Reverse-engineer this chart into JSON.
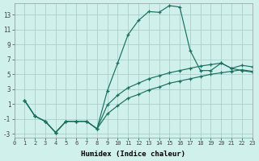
{
  "xlabel": "Humidex (Indice chaleur)",
  "bg_color": "#cff0eb",
  "line_color": "#1a7060",
  "grid_color": "#aacfca",
  "xlim": [
    0,
    23
  ],
  "ylim": [
    -3.5,
    14.5
  ],
  "xticks": [
    0,
    1,
    2,
    3,
    4,
    5,
    6,
    7,
    8,
    9,
    10,
    11,
    12,
    13,
    14,
    15,
    16,
    17,
    18,
    19,
    20,
    21,
    22,
    23
  ],
  "yticks": [
    -3,
    -1,
    1,
    3,
    5,
    7,
    9,
    11,
    13
  ],
  "curve1_x": [
    1,
    2,
    3,
    4,
    5,
    6,
    7,
    8,
    9,
    10,
    11,
    12,
    13,
    14,
    15,
    16,
    17,
    18,
    19,
    20,
    21,
    22,
    23
  ],
  "curve1_y": [
    1.5,
    -0.6,
    -1.3,
    -2.8,
    -1.3,
    -1.3,
    -1.3,
    -2.3,
    2.8,
    6.5,
    10.3,
    12.2,
    13.4,
    13.3,
    14.2,
    14.0,
    8.2,
    5.5,
    5.5,
    6.5,
    5.8,
    5.5,
    5.3
  ],
  "curve2_x": [
    1,
    2,
    3,
    4,
    5,
    6,
    7,
    8,
    9,
    10,
    11,
    12,
    13,
    14,
    15,
    16,
    17,
    18,
    19,
    20,
    21,
    22,
    23
  ],
  "curve2_y": [
    1.5,
    -0.6,
    -1.3,
    -2.8,
    -1.3,
    -1.3,
    -1.3,
    -2.3,
    0.9,
    2.2,
    3.2,
    3.8,
    4.4,
    4.8,
    5.2,
    5.5,
    5.8,
    6.1,
    6.3,
    6.5,
    5.8,
    6.2,
    6.0
  ],
  "curve3_x": [
    1,
    2,
    3,
    4,
    5,
    6,
    7,
    8,
    9,
    10,
    11,
    12,
    13,
    14,
    15,
    16,
    17,
    18,
    19,
    20,
    21,
    22,
    23
  ],
  "curve3_y": [
    1.5,
    -0.6,
    -1.3,
    -2.8,
    -1.3,
    -1.3,
    -1.3,
    -2.3,
    -0.3,
    0.8,
    1.8,
    2.3,
    2.9,
    3.3,
    3.8,
    4.1,
    4.4,
    4.7,
    5.0,
    5.2,
    5.4,
    5.6,
    5.4
  ]
}
